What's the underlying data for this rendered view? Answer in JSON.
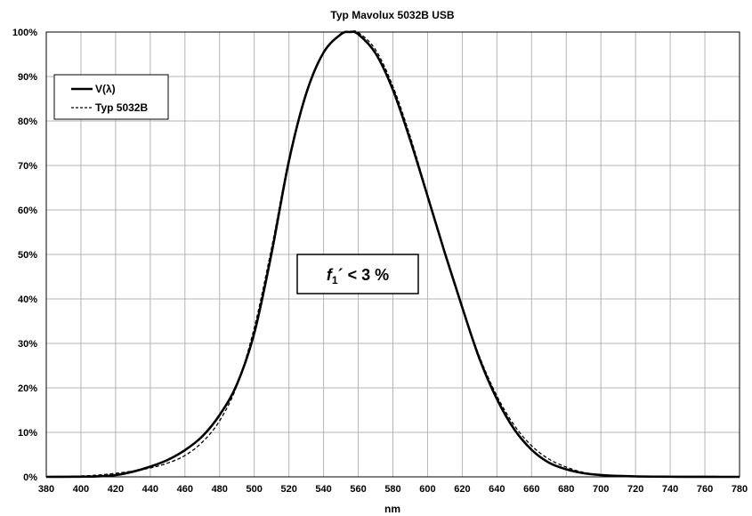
{
  "chart_data": {
    "type": "line",
    "title": "Typ Mavolux 5032B USB",
    "xlabel": "nm",
    "ylabel": "",
    "xlim": [
      380,
      780
    ],
    "ylim": [
      0,
      100
    ],
    "x_ticks": [
      "380",
      "400",
      "420",
      "440",
      "460",
      "480",
      "500",
      "520",
      "540",
      "560",
      "580",
      "600",
      "620",
      "640",
      "660",
      "680",
      "700",
      "720",
      "740",
      "760",
      "780"
    ],
    "y_ticks": [
      "0%",
      "10%",
      "20%",
      "30%",
      "40%",
      "50%",
      "60%",
      "70%",
      "80%",
      "90%",
      "100%"
    ],
    "grid": true,
    "legend_position": "top-left",
    "annotation": {
      "f": "f",
      "sub": "1",
      "rest": "´ < 3 %"
    },
    "x": [
      380,
      390,
      400,
      410,
      420,
      430,
      440,
      450,
      460,
      470,
      480,
      490,
      500,
      510,
      520,
      530,
      540,
      550,
      555,
      560,
      570,
      580,
      590,
      600,
      610,
      620,
      630,
      640,
      650,
      660,
      670,
      680,
      690,
      700,
      710,
      720,
      730,
      740,
      750,
      760,
      770,
      780
    ],
    "series": [
      {
        "name": "V(λ)",
        "style": "solid",
        "values": [
          0,
          0.01,
          0.04,
          0.12,
          0.4,
          1.16,
          2.3,
          3.8,
          6.0,
          9.1,
          13.9,
          20.8,
          32.3,
          50.3,
          71.0,
          86.2,
          95.4,
          99.5,
          100,
          99.5,
          95.2,
          87.0,
          75.7,
          63.1,
          50.3,
          38.1,
          26.5,
          17.5,
          10.7,
          6.1,
          3.2,
          1.7,
          0.82,
          0.41,
          0.21,
          0.1,
          0.05,
          0.025,
          0.012,
          0.006,
          0.003,
          0
        ]
      },
      {
        "name": "Typ 5032B",
        "style": "dashed",
        "values": [
          0,
          0.05,
          0.2,
          0.4,
          0.8,
          1.3,
          2.0,
          3.1,
          4.8,
          7.8,
          12.6,
          20.5,
          33.5,
          51.5,
          71.5,
          86.5,
          95.5,
          99.4,
          100,
          99.9,
          96.0,
          87.8,
          76.5,
          63.4,
          50.0,
          38.0,
          27.0,
          18.2,
          11.6,
          7.0,
          4.0,
          2.2,
          1.0,
          0.5,
          0.25,
          0.12,
          0.06,
          0.03,
          0.015,
          0.008,
          0.004,
          0
        ]
      }
    ]
  }
}
